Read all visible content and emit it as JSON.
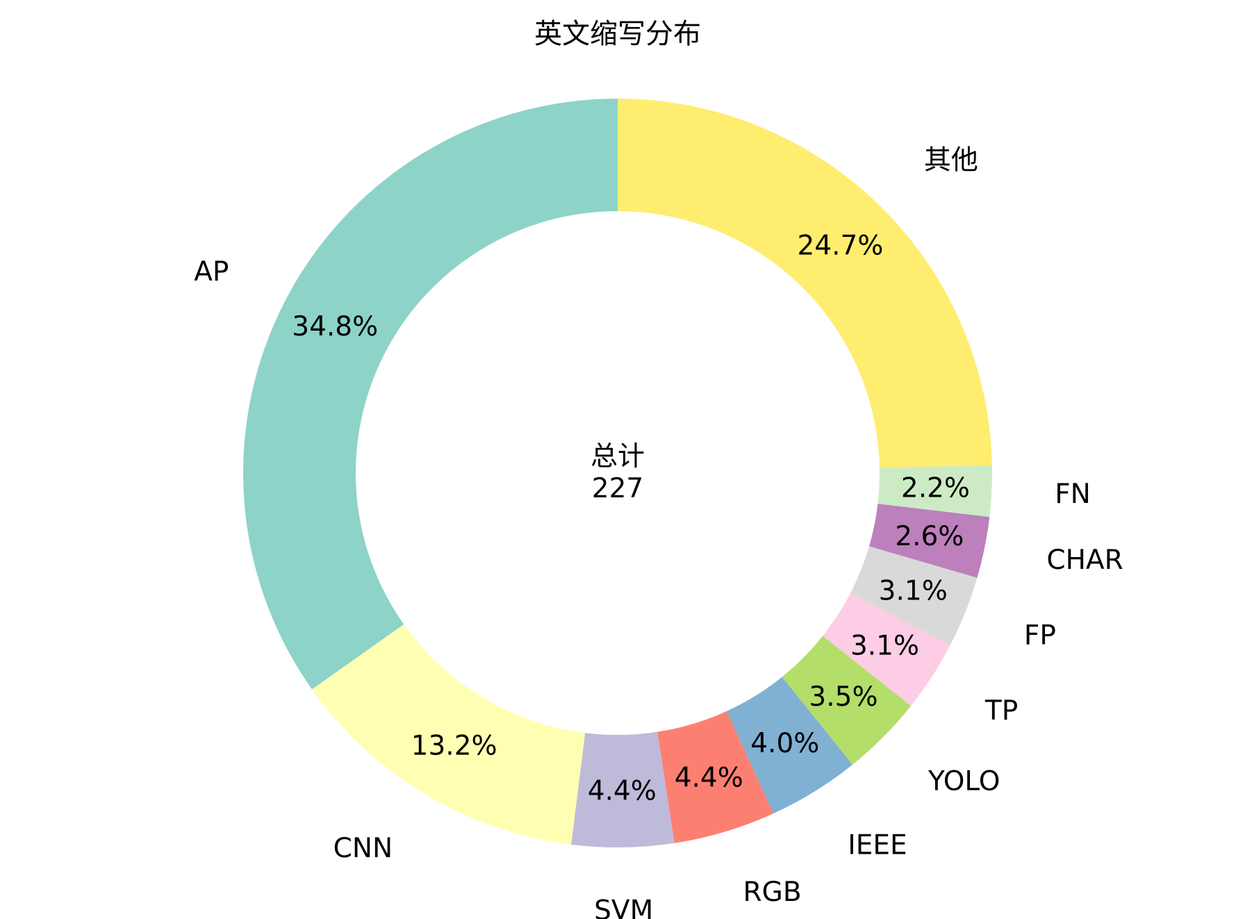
{
  "chart_data": {
    "type": "pie",
    "title": "英文缩写分布",
    "donut": true,
    "center_label": {
      "line1": "总计",
      "line2": "227"
    },
    "slices": [
      {
        "label": "其他",
        "value": 56,
        "percent_label": "24.7%",
        "color": "#ffed6f"
      },
      {
        "label": "FN",
        "value": 5,
        "percent_label": "2.2%",
        "color": "#ccebc5"
      },
      {
        "label": "CHAR",
        "value": 6,
        "percent_label": "2.6%",
        "color": "#bc80bd"
      },
      {
        "label": "FP",
        "value": 7,
        "percent_label": "3.1%",
        "color": "#d9d9d9"
      },
      {
        "label": "TP",
        "value": 7,
        "percent_label": "3.1%",
        "color": "#fccde5"
      },
      {
        "label": "YOLO",
        "value": 8,
        "percent_label": "3.5%",
        "color": "#b3de69"
      },
      {
        "label": "IEEE",
        "value": 9,
        "percent_label": "4.0%",
        "color": "#80b1d3"
      },
      {
        "label": "RGB",
        "value": 10,
        "percent_label": "4.4%",
        "color": "#fb8072"
      },
      {
        "label": "SVM",
        "value": 10,
        "percent_label": "4.4%",
        "color": "#bebada"
      },
      {
        "label": "CNN",
        "value": 30,
        "percent_label": "13.2%",
        "color": "#ffffb3"
      },
      {
        "label": "AP",
        "value": 79,
        "percent_label": "34.8%",
        "color": "#8dd3c7"
      }
    ],
    "start_angle": "top",
    "direction": "clockwise"
  }
}
